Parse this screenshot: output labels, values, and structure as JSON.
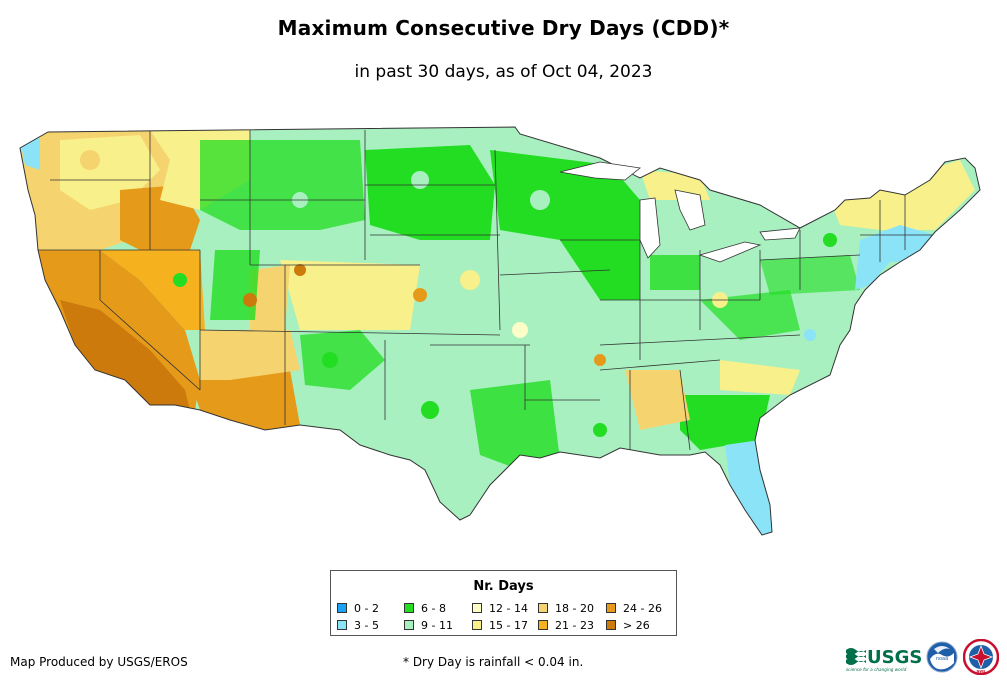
{
  "title": "Maximum Consecutive Dry Days (CDD)*",
  "subtitle": "in past 30 days, as of Oct 04, 2023",
  "legend": {
    "title": "Nr. Days",
    "items": [
      {
        "label": "0 - 2",
        "color": "#1aa3f0"
      },
      {
        "label": "3 - 5",
        "color": "#8be3f7"
      },
      {
        "label": "6 - 8",
        "color": "#22dd22"
      },
      {
        "label": "9 - 11",
        "color": "#a8f0c0"
      },
      {
        "label": "12 - 14",
        "color": "#fdfdc8"
      },
      {
        "label": "15 - 17",
        "color": "#f8f08a"
      },
      {
        "label": "18 - 20",
        "color": "#f5d470"
      },
      {
        "label": "21 - 23",
        "color": "#f5b21e"
      },
      {
        "label": "24 - 26",
        "color": "#e69a1a"
      },
      {
        "label": "> 26",
        "color": "#cc7a0c"
      }
    ]
  },
  "footer": {
    "producer": "Map Produced by USGS/EROS",
    "footnote": "* Dry Day is rainfall < 0.04 in."
  },
  "logos": {
    "usgs": {
      "text": "USGS",
      "tagline": "science for a changing world",
      "color": "#00704a"
    },
    "noaa": {
      "text": "noaa"
    },
    "nws": {
      "text": "NWS"
    }
  }
}
